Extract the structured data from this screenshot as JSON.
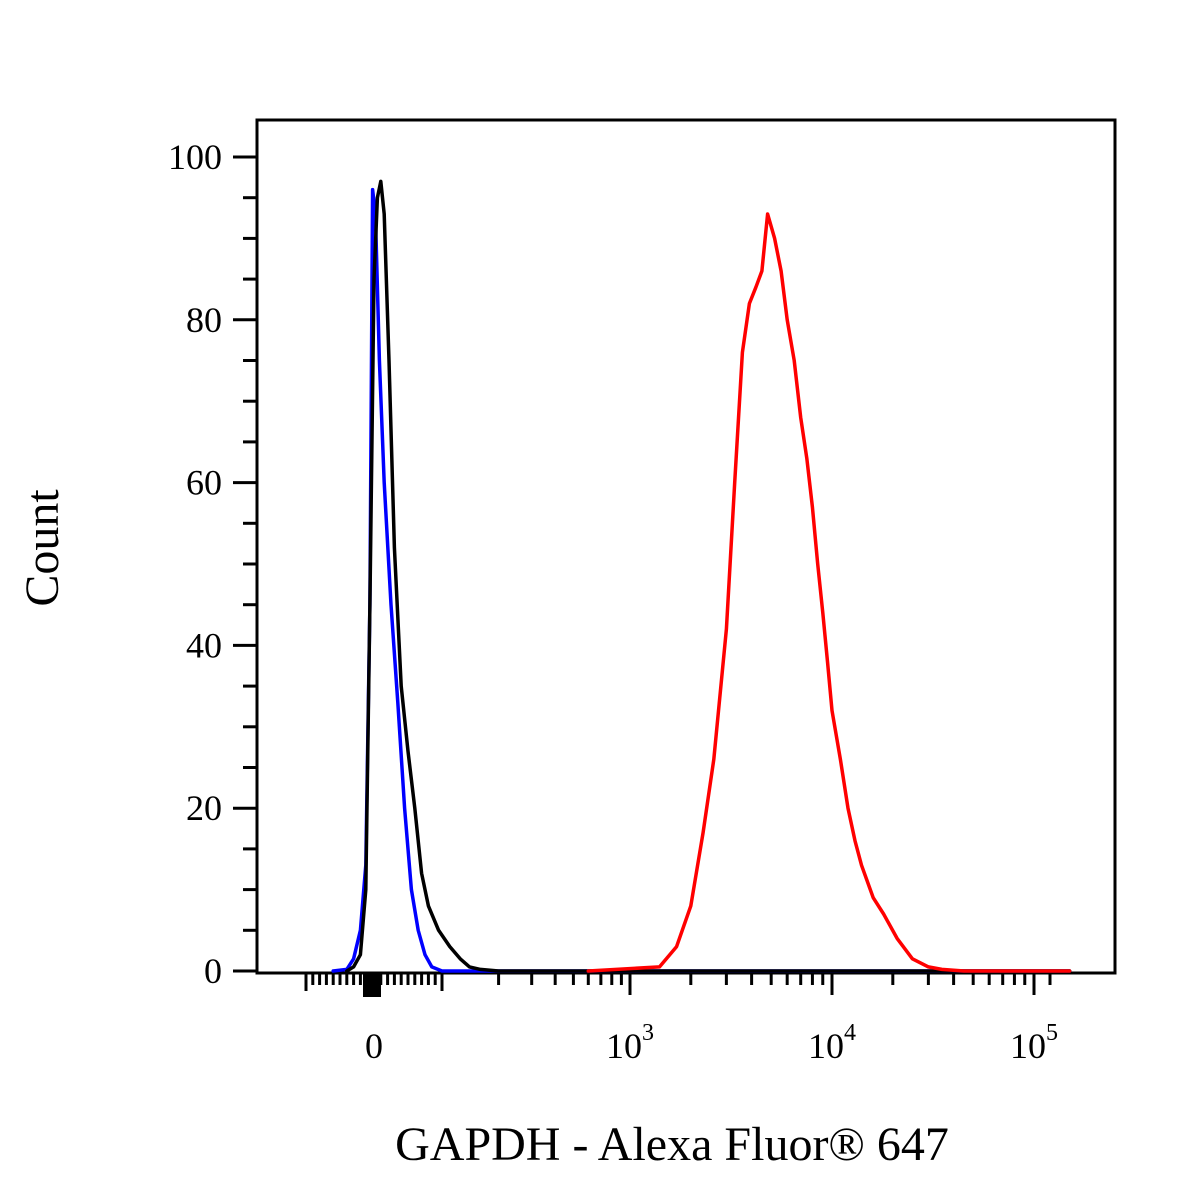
{
  "chart_data": {
    "type": "line",
    "title": "",
    "xlabel": "GAPDH - Alexa Fluor® 647",
    "ylabel": "Count",
    "x_scale": "biexponential",
    "xlim": [
      -60,
      150000
    ],
    "ylim": [
      0,
      105
    ],
    "grid": false,
    "legend": "none",
    "x_tick_labels": [
      {
        "value": 0,
        "base": "0",
        "exp": ""
      },
      {
        "value": 1000,
        "base": "10",
        "exp": "3"
      },
      {
        "value": 10000,
        "base": "10",
        "exp": "4"
      },
      {
        "value": 100000,
        "base": "10",
        "exp": "5"
      }
    ],
    "y_ticks": [
      0,
      20,
      40,
      60,
      80,
      100
    ],
    "y_tick_labels": [
      "0",
      "20",
      "40",
      "60",
      "80",
      "100"
    ],
    "series": [
      {
        "color": "#0000ff",
        "x": [
          -60,
          -40,
          -30,
          -20,
          -12,
          -6,
          -2,
          2,
          8,
          15,
          25,
          35,
          45,
          55,
          65,
          75,
          85,
          100,
          130,
          200,
          1000,
          150000
        ],
        "y": [
          0,
          0.2,
          1.5,
          5,
          13,
          45,
          96,
          93,
          75,
          60,
          45,
          33,
          20,
          10,
          5,
          2,
          0.5,
          0,
          0,
          0,
          0,
          0
        ]
      },
      {
        "color": "#000000",
        "x": [
          -40,
          -30,
          -20,
          -12,
          -6,
          0,
          5,
          10,
          15,
          22,
          30,
          40,
          50,
          60,
          70,
          80,
          95,
          110,
          125,
          140,
          160,
          200,
          1000,
          150000
        ],
        "y": [
          0,
          0.5,
          2,
          10,
          45,
          85,
          95,
          97,
          93,
          75,
          52,
          35,
          27,
          20,
          12,
          8,
          5,
          3,
          1.5,
          0.5,
          0.2,
          0,
          0,
          0
        ]
      },
      {
        "color": "#ff0000",
        "x": [
          600,
          1400,
          1700,
          2000,
          2300,
          2600,
          3000,
          3300,
          3600,
          3900,
          4200,
          4500,
          4800,
          5200,
          5600,
          6000,
          6500,
          7000,
          7500,
          8000,
          8500,
          9000,
          9500,
          10000,
          11000,
          12000,
          13000,
          14000,
          16000,
          18000,
          21000,
          25000,
          30000,
          35000,
          45000,
          60000,
          150000
        ],
        "y": [
          0,
          0.5,
          3,
          8,
          17,
          26,
          42,
          60,
          76,
          82,
          84,
          86,
          93,
          90,
          86,
          80,
          75,
          68,
          63,
          57,
          50,
          44,
          38,
          32,
          26,
          20,
          16,
          13,
          9,
          7,
          4,
          1.5,
          0.5,
          0.2,
          0,
          0,
          0
        ]
      }
    ]
  }
}
